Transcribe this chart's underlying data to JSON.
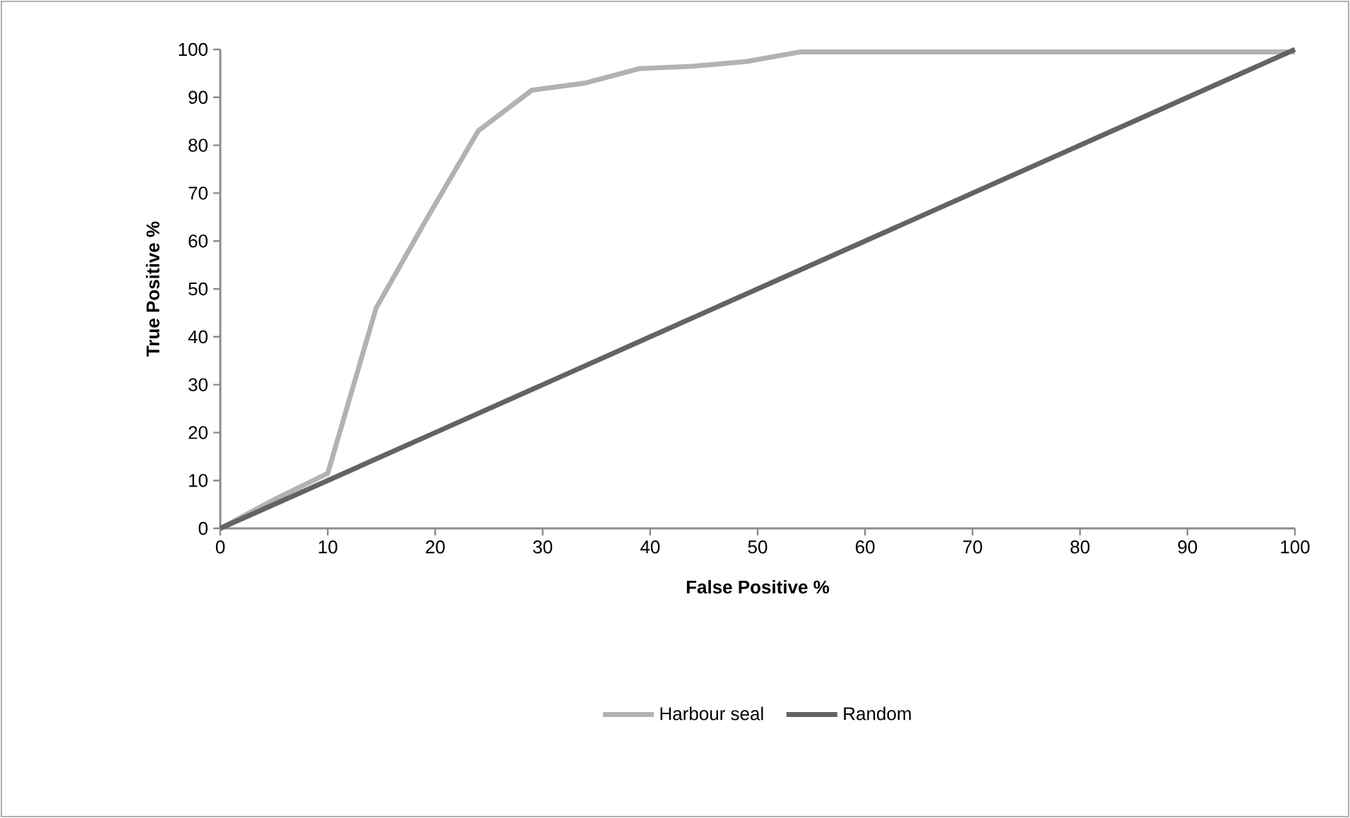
{
  "chart_data": {
    "type": "line",
    "xlabel": "False Positive %",
    "ylabel": "True Positive %",
    "xlim": [
      0,
      100
    ],
    "ylim": [
      0,
      100
    ],
    "xticks": [
      0,
      10,
      20,
      30,
      40,
      50,
      60,
      70,
      80,
      90,
      100
    ],
    "yticks": [
      0,
      10,
      20,
      30,
      40,
      50,
      60,
      70,
      80,
      90,
      100
    ],
    "grid": false,
    "legend": "bottom",
    "marker": "none",
    "line_style": "solid",
    "series": [
      {
        "name": "Harbour seal",
        "color": "#b2b2b2",
        "x": [
          0,
          5,
          10,
          14.5,
          19.3,
          24,
          29,
          34,
          39,
          44,
          49,
          54,
          100
        ],
        "values": [
          0,
          6,
          11.5,
          46,
          65,
          83,
          91.5,
          93,
          96,
          96.5,
          97.5,
          99.5,
          99.5
        ]
      },
      {
        "name": "Random",
        "color": "#636363",
        "x": [
          0,
          10,
          20,
          30,
          40,
          50,
          60,
          70,
          80,
          90,
          100
        ],
        "values": [
          0,
          10,
          20,
          30,
          40,
          50,
          60,
          70,
          80,
          90,
          100
        ]
      }
    ]
  }
}
